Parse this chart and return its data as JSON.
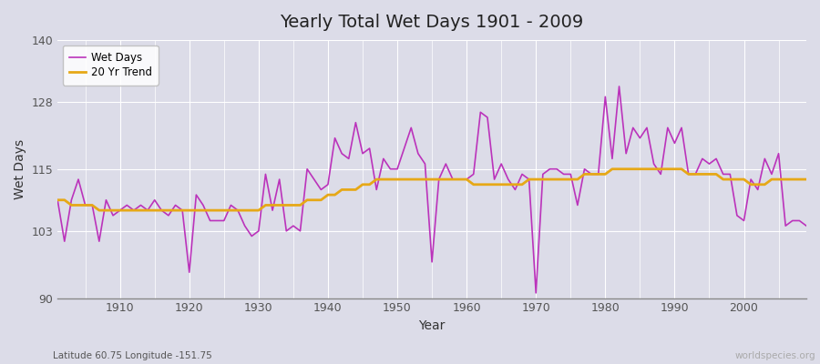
{
  "title": "Yearly Total Wet Days 1901 - 2009",
  "xlabel": "Year",
  "ylabel": "Wet Days",
  "subtitle": "Latitude 60.75 Longitude -151.75",
  "watermark": "worldspecies.org",
  "ylim": [
    90,
    140
  ],
  "yticks": [
    90,
    103,
    115,
    128,
    140
  ],
  "xlim": [
    1901,
    2009
  ],
  "xticks": [
    1910,
    1920,
    1930,
    1940,
    1950,
    1960,
    1970,
    1980,
    1990,
    2000
  ],
  "bg_color": "#dcdce8",
  "plot_bg_color": "#dcdce8",
  "grid_color": "#ffffff",
  "wet_days_color": "#bb33bb",
  "trend_color": "#e6a817",
  "years": [
    1901,
    1902,
    1903,
    1904,
    1905,
    1906,
    1907,
    1908,
    1909,
    1910,
    1911,
    1912,
    1913,
    1914,
    1915,
    1916,
    1917,
    1918,
    1919,
    1920,
    1921,
    1922,
    1923,
    1924,
    1925,
    1926,
    1927,
    1928,
    1929,
    1930,
    1931,
    1932,
    1933,
    1934,
    1935,
    1936,
    1937,
    1938,
    1939,
    1940,
    1941,
    1942,
    1943,
    1944,
    1945,
    1946,
    1947,
    1948,
    1949,
    1950,
    1951,
    1952,
    1953,
    1954,
    1955,
    1956,
    1957,
    1958,
    1959,
    1960,
    1961,
    1962,
    1963,
    1964,
    1965,
    1966,
    1967,
    1968,
    1969,
    1970,
    1971,
    1972,
    1973,
    1974,
    1975,
    1976,
    1977,
    1978,
    1979,
    1980,
    1981,
    1982,
    1983,
    1984,
    1985,
    1986,
    1987,
    1988,
    1989,
    1990,
    1991,
    1992,
    1993,
    1994,
    1995,
    1996,
    1997,
    1998,
    1999,
    2000,
    2001,
    2002,
    2003,
    2004,
    2005,
    2006,
    2007,
    2008,
    2009
  ],
  "wet_days": [
    109,
    101,
    109,
    113,
    108,
    108,
    101,
    109,
    106,
    107,
    108,
    107,
    108,
    107,
    109,
    107,
    106,
    108,
    107,
    95,
    110,
    108,
    105,
    105,
    105,
    108,
    107,
    104,
    102,
    103,
    114,
    107,
    113,
    103,
    104,
    103,
    115,
    113,
    111,
    112,
    121,
    118,
    117,
    124,
    118,
    119,
    111,
    117,
    115,
    115,
    119,
    123,
    118,
    116,
    97,
    113,
    116,
    113,
    113,
    113,
    114,
    126,
    125,
    113,
    116,
    113,
    111,
    114,
    113,
    91,
    114,
    115,
    115,
    114,
    114,
    108,
    115,
    114,
    114,
    129,
    117,
    131,
    118,
    123,
    121,
    123,
    116,
    114,
    123,
    120,
    123,
    114,
    114,
    117,
    116,
    117,
    114,
    114,
    106,
    105,
    113,
    111,
    117,
    114,
    118,
    104,
    105,
    105,
    104
  ],
  "trend": [
    109,
    109,
    108,
    108,
    108,
    108,
    107,
    107,
    107,
    107,
    107,
    107,
    107,
    107,
    107,
    107,
    107,
    107,
    107,
    107,
    107,
    107,
    107,
    107,
    107,
    107,
    107,
    107,
    107,
    107,
    108,
    108,
    108,
    108,
    108,
    108,
    109,
    109,
    109,
    110,
    110,
    111,
    111,
    111,
    112,
    112,
    113,
    113,
    113,
    113,
    113,
    113,
    113,
    113,
    113,
    113,
    113,
    113,
    113,
    113,
    112,
    112,
    112,
    112,
    112,
    112,
    112,
    112,
    113,
    113,
    113,
    113,
    113,
    113,
    113,
    113,
    114,
    114,
    114,
    114,
    115,
    115,
    115,
    115,
    115,
    115,
    115,
    115,
    115,
    115,
    115,
    114,
    114,
    114,
    114,
    114,
    113,
    113,
    113,
    113,
    112,
    112,
    112,
    113,
    113,
    113,
    113,
    113,
    113
  ]
}
